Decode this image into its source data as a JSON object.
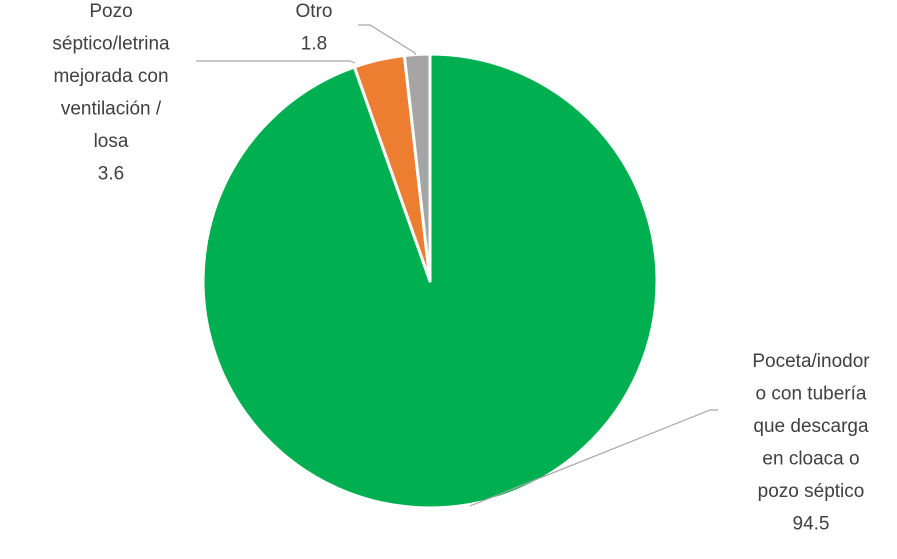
{
  "chart_data": {
    "type": "pie",
    "title": "",
    "slices": [
      {
        "label_lines": [
          "Poceta/inodor",
          "o con tubería",
          "que descarga",
          "en cloaca o",
          "pozo séptico"
        ],
        "value": 94.5,
        "value_label": "94.5",
        "color": "#00b050"
      },
      {
        "label_lines": [
          "Pozo",
          "séptico/letrina",
          "mejorada con",
          "ventilación /",
          "losa"
        ],
        "value": 3.6,
        "value_label": "3.6",
        "color": "#ed7d31"
      },
      {
        "label_lines": [
          "Otro"
        ],
        "value": 1.8,
        "value_label": "1.8",
        "color": "#a5a5a5"
      }
    ],
    "start_angle": "12 o'clock",
    "direction": "clockwise",
    "legend": "none",
    "leader_lines": true
  }
}
